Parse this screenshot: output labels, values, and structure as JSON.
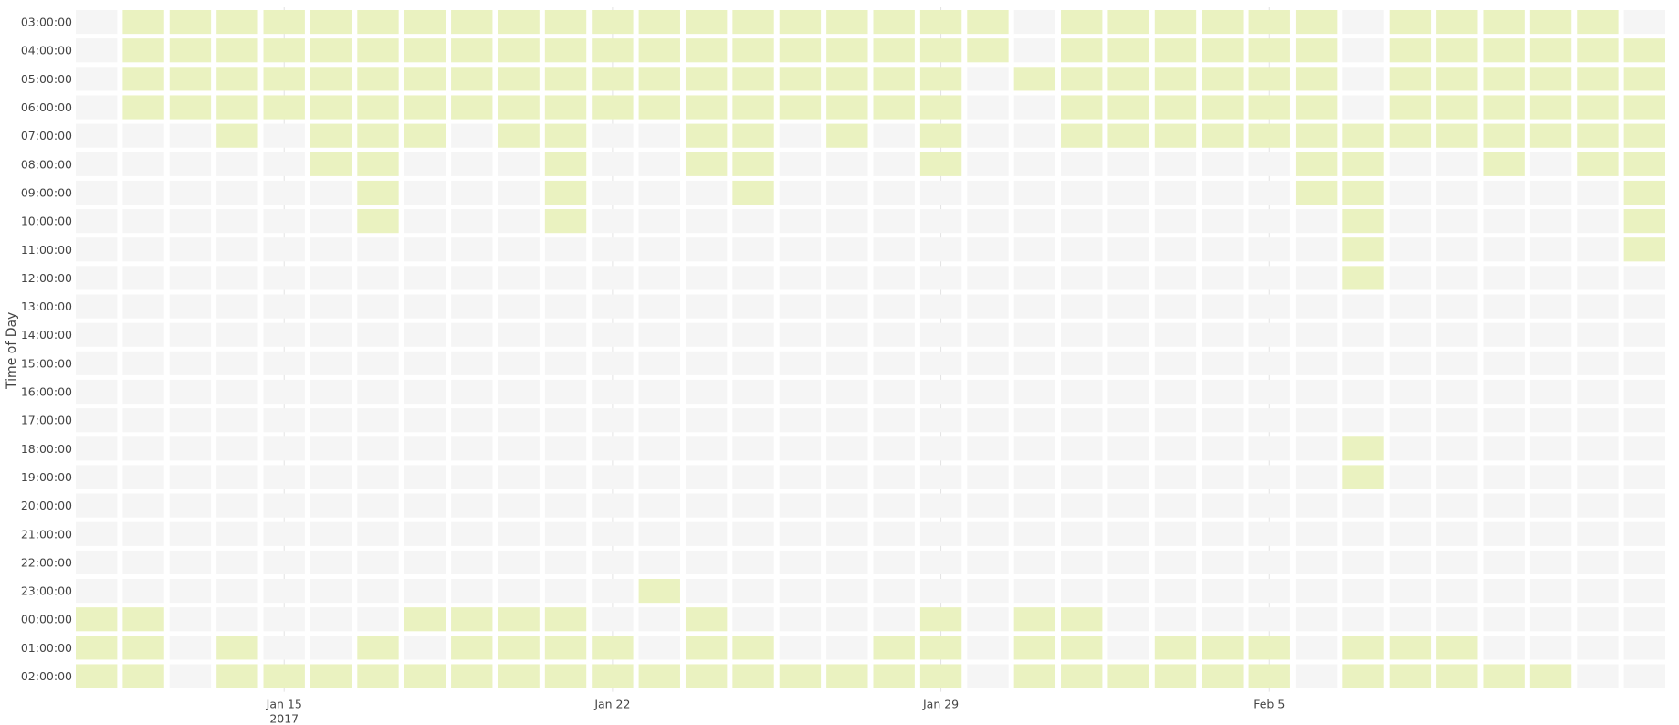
{
  "chart_data": {
    "type": "heatmap",
    "title": "",
    "xlabel": "",
    "ylabel": "Time of Day",
    "x_start": "2017-01-11",
    "x_end": "2017-02-13",
    "x_ticks": [
      {
        "date": "2017-01-15",
        "label": "Jan 15",
        "sublabel": "2017"
      },
      {
        "date": "2017-01-22",
        "label": "Jan 22",
        "sublabel": ""
      },
      {
        "date": "2017-01-29",
        "label": "Jan 29",
        "sublabel": ""
      },
      {
        "date": "2017-02-05",
        "label": "Feb 5",
        "sublabel": ""
      }
    ],
    "hours": [
      "03:00:00",
      "04:00:00",
      "05:00:00",
      "06:00:00",
      "07:00:00",
      "08:00:00",
      "09:00:00",
      "10:00:00",
      "11:00:00",
      "12:00:00",
      "13:00:00",
      "14:00:00",
      "15:00:00",
      "16:00:00",
      "17:00:00",
      "18:00:00",
      "19:00:00",
      "20:00:00",
      "21:00:00",
      "22:00:00",
      "23:00:00",
      "00:00:00",
      "01:00:00",
      "02:00:00"
    ],
    "grid": true,
    "colors": {
      "active": "#eaf2c0",
      "inactive": "#f5f5f5",
      "gridline": "#e2e2e2"
    },
    "active": [
      "0111111111111111111101111110111110",
      "0111111111111111111101111110111111",
      "0111111111111111111011111110111111",
      "0111111111111111111001111110111111",
      "0001011101100110101001111111111111",
      "0000011000100110001000000011001011",
      "0000001000100010000000000011000001",
      "0000001000100000000000000001000001",
      "0000000000000000000000000001000001",
      "0000000000000000000000000001000000",
      "0000000000000000000000000000000000",
      "0000000000000000000000000000000000",
      "0000000000000000000000000000000000",
      "0000000000000000000000000000000000",
      "0000000000000000000000000000000000",
      "0000000000000000000000000001000000",
      "0000000000000000000000000001000000",
      "0000000000000000000000000000000000",
      "0000000000000000000000000000000000",
      "0000000000000000000000000000000000",
      "0000000000001000000000000000000000",
      "1100000111100100001011000000000000",
      "1101001011110110011011011101110000",
      "1101111111111111111011111101111100"
    ]
  }
}
